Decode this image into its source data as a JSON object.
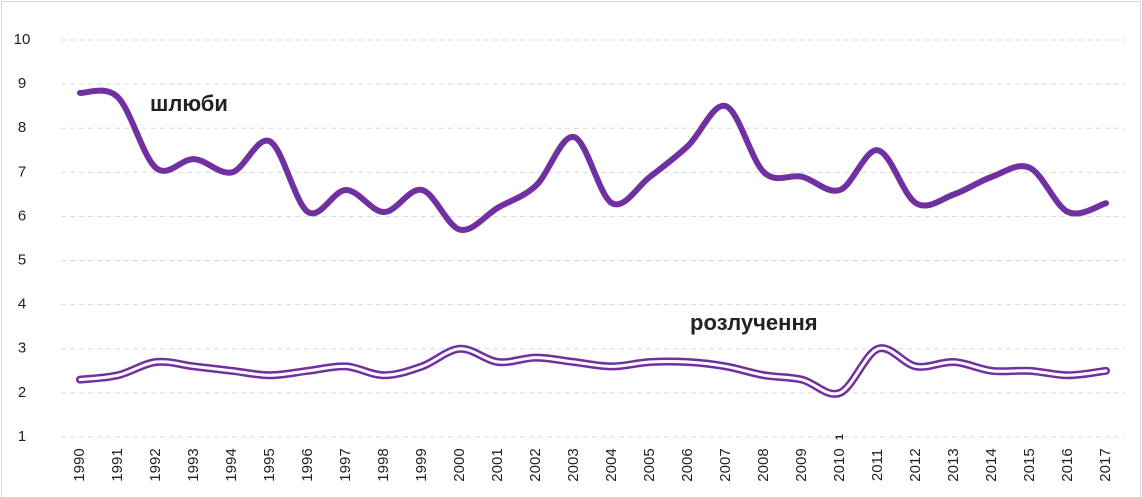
{
  "chart_data": {
    "type": "line",
    "categories": [
      "1990",
      "1991",
      "1992",
      "1993",
      "1994",
      "1995",
      "1996",
      "1997",
      "1998",
      "1999",
      "2000",
      "2001",
      "2002",
      "2003",
      "2004",
      "2005",
      "2006",
      "2007",
      "2008",
      "2009",
      "2010",
      "2011",
      "2012",
      "2013",
      "2014",
      "2015",
      "2016",
      "2017"
    ],
    "series": [
      {
        "name": "шлюби",
        "color": "#7030a0",
        "values": [
          8.8,
          8.7,
          7.1,
          7.3,
          7.0,
          7.7,
          6.1,
          6.6,
          6.1,
          6.6,
          5.7,
          6.2,
          6.7,
          7.8,
          6.3,
          6.9,
          7.6,
          8.5,
          7.0,
          6.9,
          6.6,
          7.5,
          6.3,
          6.5,
          6.9,
          7.1,
          6.1,
          6.3
        ]
      },
      {
        "name": "розлучення",
        "color": "#7030a0",
        "values": [
          2.3,
          2.4,
          2.7,
          2.6,
          2.5,
          2.4,
          2.5,
          2.6,
          2.4,
          2.6,
          3.0,
          2.7,
          2.8,
          2.7,
          2.6,
          2.7,
          2.7,
          2.6,
          2.4,
          2.3,
          2.0,
          3.0,
          2.6,
          2.7,
          2.5,
          2.5,
          2.4,
          2.5
        ]
      }
    ],
    "annotations": [
      "1"
    ],
    "ylim": [
      1,
      10
    ],
    "yticks": [
      1,
      2,
      3,
      4,
      5,
      6,
      7,
      8,
      9,
      10
    ],
    "grid": true
  }
}
